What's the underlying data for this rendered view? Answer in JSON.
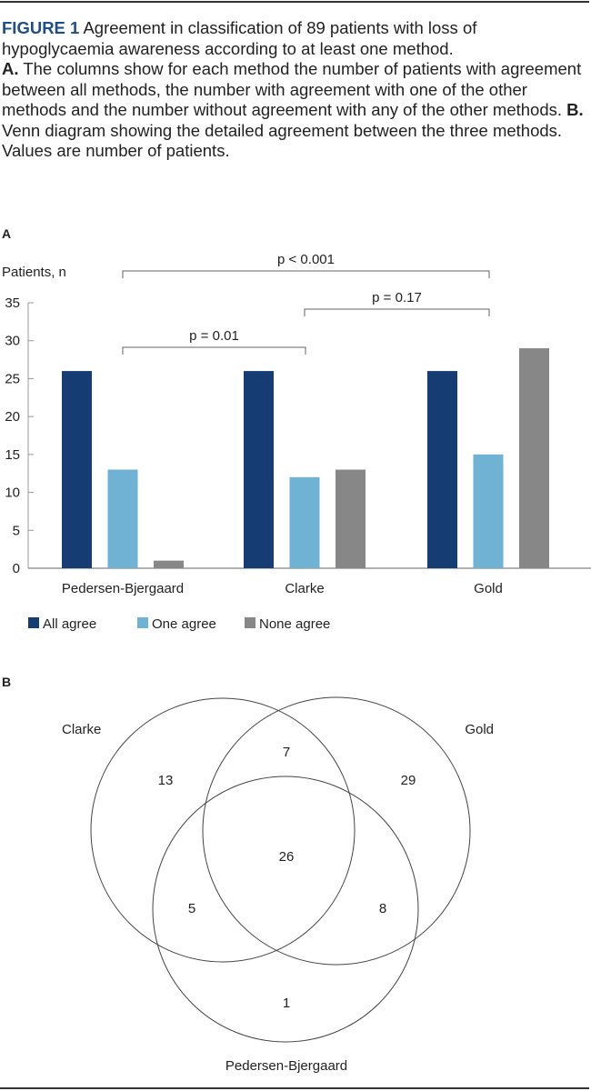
{
  "caption": {
    "figure_label": "FIGURE 1",
    "intro": "Agreement in classification of 89 patients with loss of hypoglycaemia awareness according to at least one method.",
    "a_label": "A.",
    "a_text": "The columns show for each method the number of patients with agreement between all methods, the number with agreement with one of the other methods and the number without agreement with any of the other methods.",
    "b_label": "B.",
    "b_text": "Venn diagram showing the detailed agreement between the three methods. Values are number of patients."
  },
  "panels": {
    "a": "A",
    "b": "B"
  },
  "colors": {
    "all_agree": "#163d73",
    "one_agree": "#70b2d3",
    "none_agree": "#878787",
    "figure_label": "#1f4e85"
  },
  "chart_data": [
    {
      "type": "bar",
      "ylabel": "Patients, n",
      "ylim": [
        0,
        35
      ],
      "yticks": [
        0,
        5,
        10,
        15,
        20,
        25,
        30,
        35
      ],
      "categories": [
        "Pedersen-Bjergaard",
        "Clarke",
        "Gold"
      ],
      "series": [
        {
          "name": "All agree",
          "values": [
            26,
            26,
            26
          ],
          "color": "#163d73"
        },
        {
          "name": "One agree",
          "values": [
            13,
            12,
            15
          ],
          "color": "#70b2d3"
        },
        {
          "name": "None agree",
          "values": [
            1,
            13,
            29
          ],
          "color": "#878787"
        }
      ],
      "legend": "bottom-left",
      "grid": false,
      "annotations": [
        {
          "text": "p < 0.001",
          "from": "Pedersen-Bjergaard",
          "to": "Gold"
        },
        {
          "text": "p = 0.17",
          "from": "Clarke",
          "to": "Gold"
        },
        {
          "text": "p = 0.01",
          "from": "Pedersen-Bjergaard",
          "to": "Clarke"
        }
      ]
    },
    {
      "type": "venn",
      "sets": [
        "Clarke",
        "Gold",
        "Pedersen-Bjergaard"
      ],
      "regions": {
        "clarke_only": "13",
        "gold_only": "29",
        "pb_only": "1",
        "clarke_gold": "7",
        "clarke_pb": "5",
        "gold_pb": "8",
        "all": "26"
      }
    }
  ]
}
